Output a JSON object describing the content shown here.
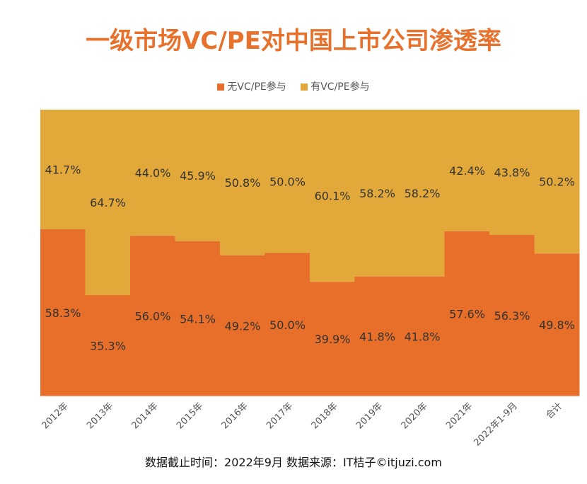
{
  "title": "一级市场VC/PE对中国上市公司渗透率",
  "legend": {
    "without": "无VC/PE参与",
    "with": "有VC/PE参与"
  },
  "footer": "数据截止时间：2022年9月 数据来源：IT桔子©itjuzi.com",
  "colors": {
    "without": "#e76f2a",
    "with": "#e2a93a",
    "title": "#e7722e"
  },
  "chart_data": {
    "type": "bar",
    "stacked": true,
    "percent_stacked": true,
    "categories": [
      "2012年",
      "2013年",
      "2014年",
      "2015年",
      "2016年",
      "2017年",
      "2018年",
      "2019年",
      "2020年",
      "2021年",
      "2022年1-9月",
      "合计"
    ],
    "series": [
      {
        "name": "无VC/PE参与",
        "values": [
          58.3,
          35.3,
          56.0,
          54.1,
          49.2,
          50.0,
          39.9,
          41.8,
          41.8,
          57.6,
          56.3,
          49.8
        ],
        "labels": [
          "58.3%",
          "35.3%",
          "56.0%",
          "54.1%",
          "49.2%",
          "50.0%",
          "39.9%",
          "41.8%",
          "41.8%",
          "57.6%",
          "56.3%",
          "49.8%"
        ]
      },
      {
        "name": "有VC/PE参与",
        "values": [
          41.7,
          64.7,
          44.0,
          45.9,
          50.8,
          50.0,
          60.1,
          58.2,
          58.2,
          42.4,
          43.8,
          50.2
        ],
        "labels": [
          "41.7%",
          "64.7%",
          "44.0%",
          "45.9%",
          "50.8%",
          "50.0%",
          "60.1%",
          "58.2%",
          "58.2%",
          "42.4%",
          "43.8%",
          "50.2%"
        ]
      }
    ],
    "ylim": [
      0,
      100
    ],
    "legend_position": "top",
    "grid": false
  }
}
